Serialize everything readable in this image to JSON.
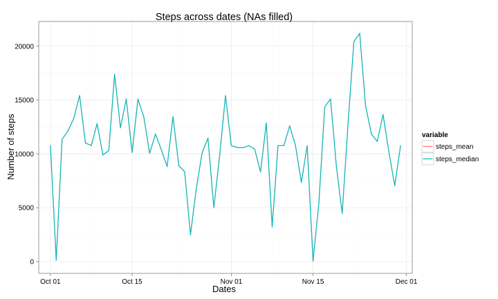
{
  "chart_data": {
    "type": "line",
    "title": "Steps across dates (NAs filled)",
    "xlabel": "Dates",
    "ylabel": "Number of steps",
    "x_range": [
      "2012-09-29",
      "2012-12-02"
    ],
    "x_ticks": [
      {
        "date": "2012-10-01",
        "label": "Oct 01"
      },
      {
        "date": "2012-10-15",
        "label": "Oct 15"
      },
      {
        "date": "2012-11-01",
        "label": "Nov 01"
      },
      {
        "date": "2012-11-15",
        "label": "Nov 15"
      },
      {
        "date": "2012-12-01",
        "label": "Dec 01"
      }
    ],
    "ylim": [
      -1100,
      22300
    ],
    "y_ticks": [
      0,
      5000,
      10000,
      15000,
      20000
    ],
    "grid": true,
    "legend_position": "right",
    "legend_title": "variable",
    "x": [
      "2012-10-01",
      "2012-10-02",
      "2012-10-03",
      "2012-10-04",
      "2012-10-05",
      "2012-10-06",
      "2012-10-07",
      "2012-10-08",
      "2012-10-09",
      "2012-10-10",
      "2012-10-11",
      "2012-10-12",
      "2012-10-13",
      "2012-10-14",
      "2012-10-15",
      "2012-10-16",
      "2012-10-17",
      "2012-10-18",
      "2012-10-19",
      "2012-10-20",
      "2012-10-21",
      "2012-10-22",
      "2012-10-23",
      "2012-10-24",
      "2012-10-25",
      "2012-10-26",
      "2012-10-27",
      "2012-10-28",
      "2012-10-29",
      "2012-10-30",
      "2012-10-31",
      "2012-11-01",
      "2012-11-02",
      "2012-11-03",
      "2012-11-04",
      "2012-11-05",
      "2012-11-06",
      "2012-11-07",
      "2012-11-08",
      "2012-11-09",
      "2012-11-10",
      "2012-11-11",
      "2012-11-12",
      "2012-11-13",
      "2012-11-14",
      "2012-11-15",
      "2012-11-16",
      "2012-11-17",
      "2012-11-18",
      "2012-11-19",
      "2012-11-20",
      "2012-11-21",
      "2012-11-22",
      "2012-11-23",
      "2012-11-24",
      "2012-11-25",
      "2012-11-26",
      "2012-11-27",
      "2012-11-28",
      "2012-11-29",
      "2012-11-30"
    ],
    "series": [
      {
        "name": "steps_mean",
        "color": "#F8766D",
        "values": [
          10766,
          126,
          11352,
          12116,
          13294,
          15420,
          11015,
          10766,
          12811,
          9900,
          10304,
          17382,
          12426,
          15098,
          10139,
          15084,
          13452,
          10056,
          11829,
          10395,
          8821,
          13460,
          8918,
          8355,
          2492,
          6778,
          10119,
          11458,
          5018,
          9819,
          15414,
          10766,
          10600,
          10571,
          10766,
          10439,
          8334,
          12883,
          3219,
          10766,
          10766,
          12608,
          10765,
          7336,
          10766,
          41,
          5441,
          14339,
          15110,
          8841,
          4472,
          12787,
          20427,
          21194,
          14478,
          11834,
          11162,
          13646,
          10183,
          7047,
          10766
        ]
      },
      {
        "name": "steps_median",
        "color": "#00BFC4",
        "values": [
          10766,
          126,
          11352,
          12116,
          13294,
          15420,
          11015,
          10766,
          12811,
          9900,
          10304,
          17382,
          12426,
          15098,
          10139,
          15084,
          13452,
          10056,
          11829,
          10395,
          8821,
          13460,
          8918,
          8355,
          2492,
          6778,
          10119,
          11458,
          5018,
          9819,
          15414,
          10766,
          10600,
          10571,
          10766,
          10439,
          8334,
          12883,
          3219,
          10766,
          10766,
          12608,
          10765,
          7336,
          10766,
          41,
          5441,
          14339,
          15110,
          8841,
          4472,
          12787,
          20427,
          21194,
          14478,
          11834,
          11162,
          13646,
          10183,
          7047,
          10766
        ]
      }
    ]
  }
}
